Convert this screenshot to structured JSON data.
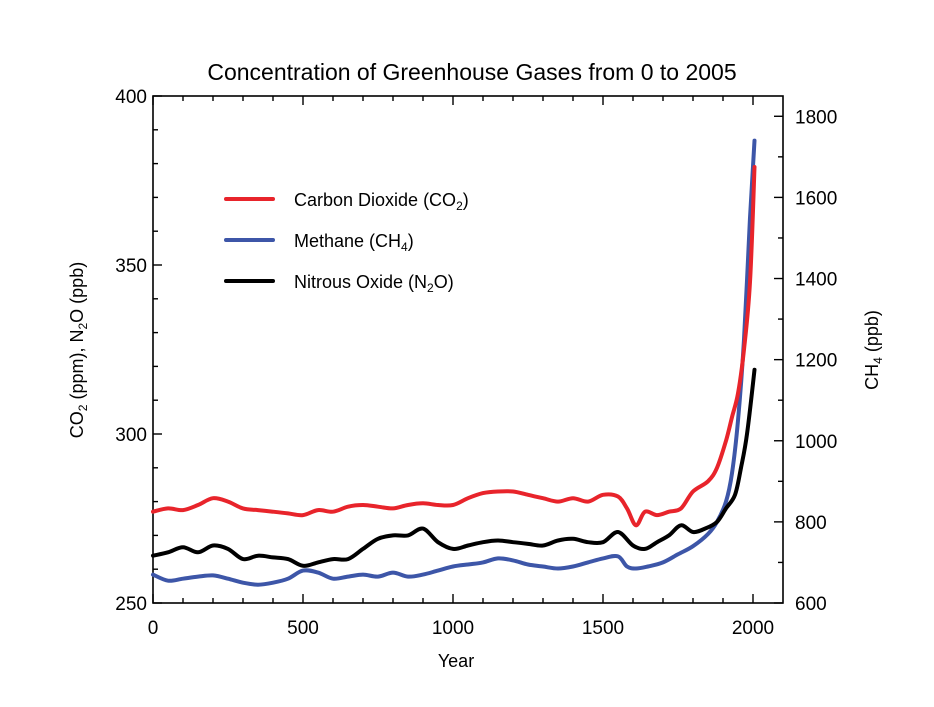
{
  "chart_data": {
    "type": "line",
    "title": "Concentration of Greenhouse Gases from 0 to 2005",
    "xlabel": "Year",
    "ylabel_left": {
      "pre": "CO",
      "sub1": "2",
      "mid": " (ppm), N",
      "sub2": "2",
      "post": "O (ppb)"
    },
    "ylabel_right": {
      "pre": "CH",
      "sub": "4",
      "post": " (ppb)"
    },
    "xlim": [
      0,
      2100
    ],
    "ylim_left": [
      250,
      400
    ],
    "ylim_right": [
      600,
      1850
    ],
    "xticks": [
      "0",
      "500",
      "1000",
      "1500",
      "2000"
    ],
    "yticks_left": [
      "250",
      "300",
      "350",
      "400"
    ],
    "yticks_right": [
      "600",
      "800",
      "1000",
      "1200",
      "1400",
      "1600",
      "1800"
    ],
    "legend_position": "upper-left",
    "series": [
      {
        "name": "Carbon Dioxide (CO2)",
        "legend": {
          "pre": "Carbon Dioxide (CO",
          "sub": "2",
          "post": ")"
        },
        "color": "#e8242b",
        "axis": "left",
        "x": [
          0,
          50,
          100,
          150,
          200,
          250,
          300,
          350,
          400,
          450,
          500,
          550,
          600,
          650,
          700,
          750,
          800,
          850,
          900,
          950,
          1000,
          1050,
          1100,
          1150,
          1200,
          1250,
          1300,
          1350,
          1400,
          1450,
          1500,
          1550,
          1580,
          1610,
          1640,
          1680,
          1720,
          1760,
          1800,
          1850,
          1880,
          1910,
          1930,
          1950,
          1970,
          1990,
          2005
        ],
        "y": [
          277,
          278,
          277.5,
          279,
          281,
          280,
          278,
          277.5,
          277,
          276.5,
          276,
          277.5,
          277,
          278.5,
          279,
          278.5,
          278,
          279,
          279.5,
          279,
          279,
          281,
          282.5,
          283,
          283,
          282,
          281,
          280,
          281,
          280,
          282,
          281.5,
          278,
          273,
          277,
          276,
          277,
          278,
          283,
          286,
          290,
          298,
          305,
          312,
          325,
          345,
          379
        ]
      },
      {
        "name": "Methane (CH4)",
        "legend": {
          "pre": "Methane (CH",
          "sub": "4",
          "post": ")"
        },
        "color": "#3d56a8",
        "axis": "right",
        "x": [
          0,
          50,
          100,
          150,
          200,
          250,
          300,
          350,
          400,
          450,
          500,
          550,
          600,
          650,
          700,
          750,
          800,
          850,
          900,
          950,
          1000,
          1050,
          1100,
          1150,
          1200,
          1250,
          1300,
          1350,
          1400,
          1450,
          1500,
          1550,
          1580,
          1610,
          1650,
          1700,
          1750,
          1800,
          1850,
          1880,
          1910,
          1930,
          1950,
          1970,
          1990,
          2005
        ],
        "y": [
          670,
          655,
          660,
          665,
          668,
          660,
          650,
          645,
          650,
          660,
          680,
          675,
          660,
          665,
          670,
          665,
          675,
          665,
          670,
          680,
          690,
          695,
          700,
          710,
          705,
          695,
          690,
          685,
          690,
          700,
          710,
          715,
          690,
          685,
          690,
          700,
          720,
          740,
          770,
          800,
          850,
          920,
          1050,
          1250,
          1550,
          1740
        ]
      },
      {
        "name": "Nitrous Oxide (N2O)",
        "legend": {
          "pre": "Nitrous Oxide (N",
          "sub": "2",
          "post": "O)"
        },
        "color": "#000000",
        "axis": "left",
        "x": [
          0,
          50,
          100,
          150,
          200,
          250,
          300,
          350,
          400,
          450,
          500,
          550,
          600,
          650,
          700,
          750,
          800,
          850,
          900,
          950,
          1000,
          1050,
          1100,
          1150,
          1200,
          1250,
          1300,
          1350,
          1400,
          1450,
          1500,
          1550,
          1600,
          1640,
          1680,
          1720,
          1760,
          1800,
          1840,
          1880,
          1910,
          1940,
          1960,
          1980,
          2005
        ],
        "y": [
          264,
          265,
          266.5,
          265,
          267,
          266,
          263,
          264,
          263.5,
          263,
          261,
          262,
          263,
          263,
          266,
          269,
          270,
          270,
          272,
          268,
          266,
          267,
          268,
          268.5,
          268,
          267.5,
          267,
          268.5,
          269,
          268,
          268,
          271,
          267,
          266,
          268,
          270,
          273,
          271,
          272,
          274,
          278,
          282,
          290,
          300,
          319
        ]
      }
    ]
  }
}
